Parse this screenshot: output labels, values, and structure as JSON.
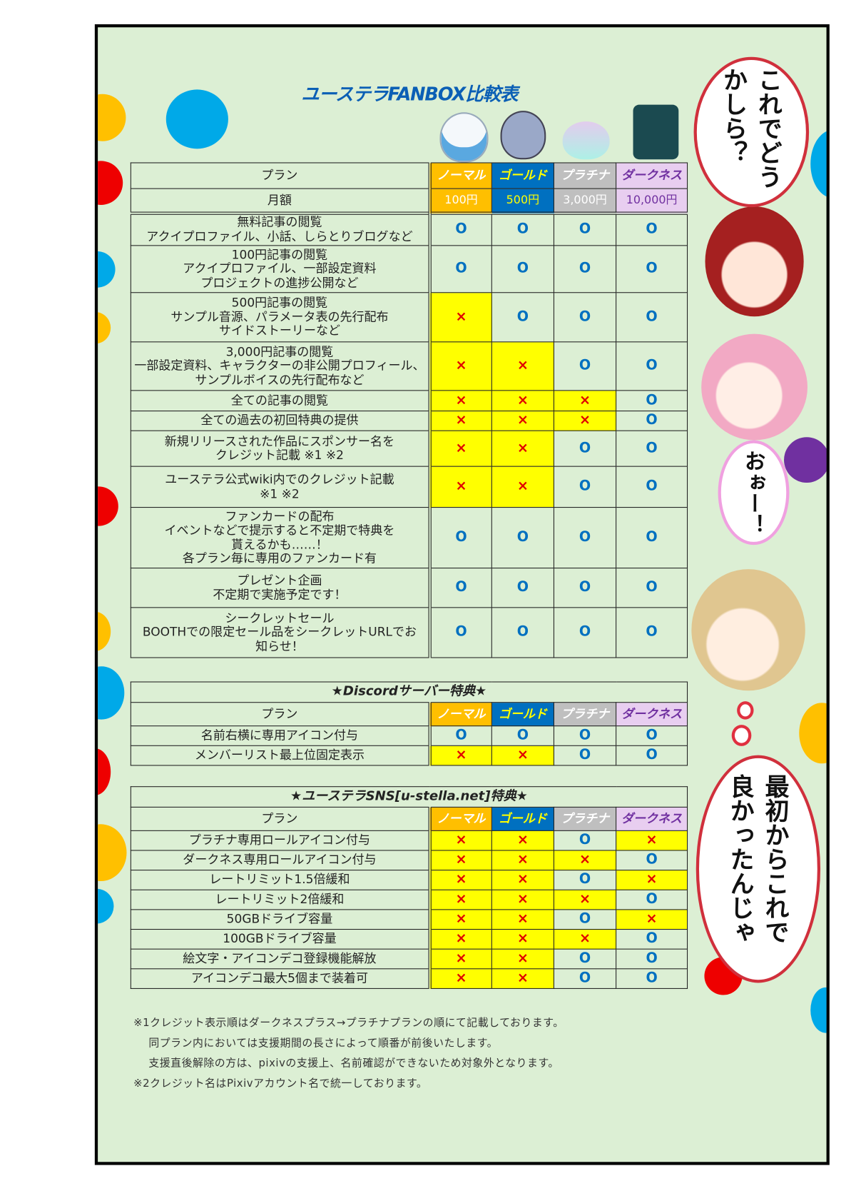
{
  "title": "ユーステラFANBOX比較表",
  "colors": {
    "normal": "#ffbf00",
    "gold": "#0070c0",
    "platina": "#bfbfbf",
    "darkness": "#e8cef0",
    "yes": "#0070c0",
    "no": "#e00000",
    "highlight": "#ffff00",
    "background": "#dcefd4"
  },
  "plans": [
    "ノーマル",
    "ゴールド",
    "プラチナ",
    "ダークネス"
  ],
  "main_table": {
    "plan_label": "プラン",
    "price_label": "月額",
    "prices": [
      "100円",
      "500円",
      "3,000円",
      "10,000円"
    ],
    "rows": [
      {
        "label": "無料記事の閲覧\nアクイプロファイル、小話、しらとりブログなど",
        "values": [
          "o",
          "o",
          "o",
          "o"
        ]
      },
      {
        "label": "100円記事の閲覧\nアクイプロファイル、一部設定資料\nプロジェクトの進捗公開など",
        "values": [
          "o",
          "o",
          "o",
          "o"
        ]
      },
      {
        "label": "500円記事の閲覧\nサンプル音源、パラメータ表の先行配布\nサイドストーリーなど",
        "values": [
          "x",
          "o",
          "o",
          "o"
        ]
      },
      {
        "label": "3,000円記事の閲覧\n一部設定資料、キャラクターの非公開プロフィール、\nサンプルボイスの先行配布など",
        "values": [
          "x",
          "x",
          "o",
          "o"
        ]
      },
      {
        "label": "全ての記事の閲覧",
        "values": [
          "x",
          "x",
          "x",
          "o"
        ]
      },
      {
        "label": "全ての過去の初回特典の提供",
        "values": [
          "x",
          "x",
          "x",
          "o"
        ]
      },
      {
        "label": "新規リリースされた作品にスポンサー名を\nクレジット記載 ※1 ※2",
        "values": [
          "x",
          "x",
          "o",
          "o"
        ]
      },
      {
        "label": "ユーステラ公式wiki内でのクレジット記載\n※1 ※2",
        "values": [
          "x",
          "x",
          "o",
          "o"
        ]
      },
      {
        "label": "ファンカードの配布\nイベントなどで提示すると不定期で特典を\n貰えるかも……！\n各プラン毎に専用のファンカード有",
        "values": [
          "o",
          "o",
          "o",
          "o"
        ]
      },
      {
        "label": "プレゼント企画\n不定期で実施予定です！",
        "values": [
          "o",
          "o",
          "o",
          "o"
        ]
      },
      {
        "label": "シークレットセール\nBOOTHでの限定セール品をシークレットURLでお\n知らせ！",
        "values": [
          "o",
          "o",
          "o",
          "o"
        ]
      }
    ]
  },
  "discord_table": {
    "title": "★Discordサーバー特典★",
    "plan_label": "プラン",
    "rows": [
      {
        "label": "名前右横に専用アイコン付与",
        "values": [
          "o",
          "o",
          "o",
          "o"
        ]
      },
      {
        "label": "メンバーリスト最上位固定表示",
        "values": [
          "x",
          "x",
          "o",
          "o"
        ]
      }
    ]
  },
  "sns_table": {
    "title": "★ユーステラSNS[u-stella.net]特典★",
    "plan_label": "プラン",
    "rows": [
      {
        "label": "プラチナ専用ロールアイコン付与",
        "values": [
          "x",
          "x",
          "o",
          "x"
        ]
      },
      {
        "label": "ダークネス専用ロールアイコン付与",
        "values": [
          "x",
          "x",
          "x",
          "o"
        ]
      },
      {
        "label": "レートリミット1.5倍緩和",
        "values": [
          "x",
          "x",
          "o",
          "x"
        ]
      },
      {
        "label": "レートリミット2倍緩和",
        "values": [
          "x",
          "x",
          "x",
          "o"
        ]
      },
      {
        "label": "50GBドライブ容量",
        "values": [
          "x",
          "x",
          "o",
          "x"
        ]
      },
      {
        "label": "100GBドライブ容量",
        "values": [
          "x",
          "x",
          "x",
          "o"
        ]
      },
      {
        "label": "絵文字・アイコンデコ登録機能解放",
        "values": [
          "x",
          "x",
          "o",
          "o"
        ]
      },
      {
        "label": "アイコンデコ最大5個まで装着可",
        "values": [
          "x",
          "x",
          "o",
          "o"
        ]
      }
    ]
  },
  "marks": {
    "yes": "O",
    "no": "×"
  },
  "notes": [
    "※1クレジット表示順はダークネスプラス→プラチナプランの順にて記載しております。",
    "同プラン内においては支援期間の長さによって順番が前後いたします。",
    "支援直後解除の方は、pixivの支援上、名前確認ができないため対象外となります。",
    "※2クレジット名はPixivアカウント名で統一しております。"
  ],
  "bubbles": [
    "これでどうかしら？",
    "おぉー！",
    "最初からこれで良かったんじゃ"
  ]
}
